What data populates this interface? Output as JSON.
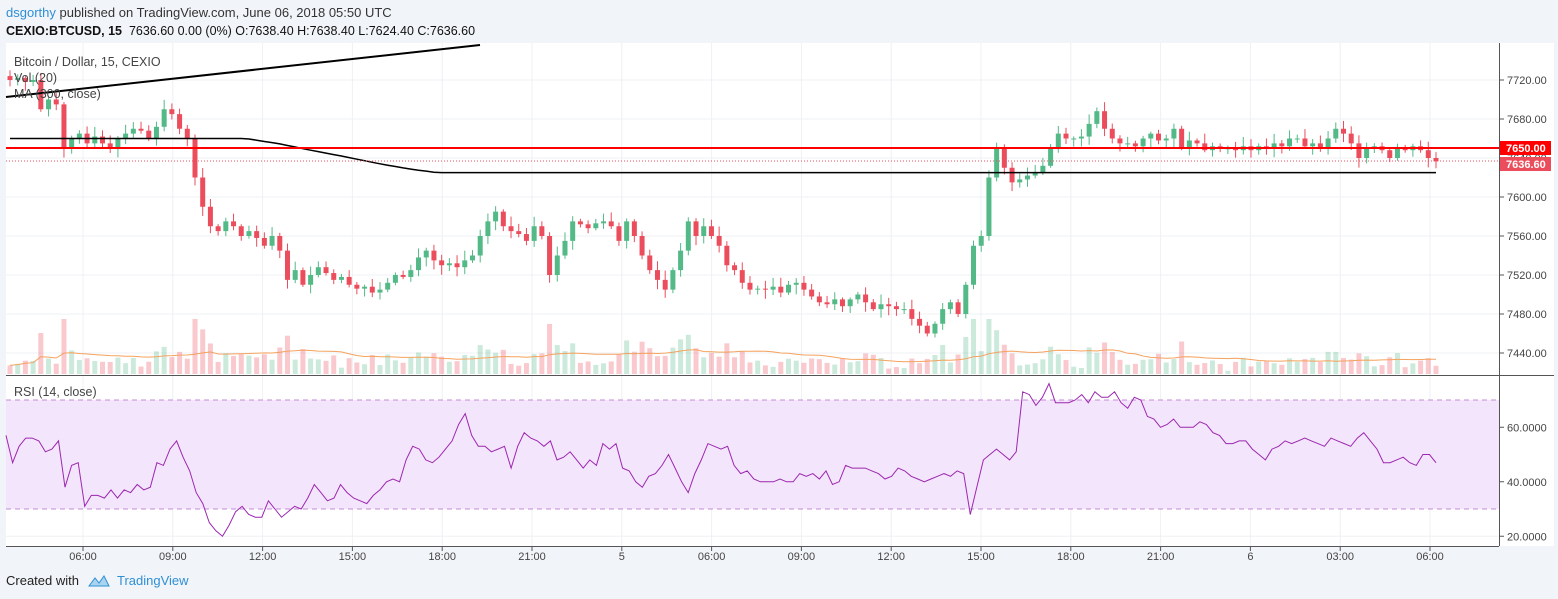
{
  "header": {
    "author": "dsgorthy",
    "published_text": " published on TradingView.com, June 06, 2018 05:50 UTC",
    "symbol": "CEXIO:BTCUSD, 15",
    "ohlc_text": "7636.60 0.00 (0%) O:7638.40 H:7638.40 L:7624.40 C:7636.60"
  },
  "footer": {
    "created_with": "Created with",
    "brand": "TradingView"
  },
  "colors": {
    "up": "#53b987",
    "down": "#eb4d5c",
    "rsi": "#9c27b0",
    "rsi_band": "#f3e5fb",
    "hline": "#ff0000",
    "ma": "#000000",
    "vol_ma": "#f5a25d"
  },
  "chart_data": {
    "type": "candlestick",
    "title": "Bitcoin / Dollar, 15, CEXIO",
    "legend": [
      "Vol (20)",
      "MA (300, close)"
    ],
    "price_axis": {
      "ticks": [
        "7720.00",
        "7680.00",
        "7640.00",
        "7600.00",
        "7560.00",
        "7520.00",
        "7480.00",
        "7440.00"
      ]
    },
    "time_axis": {
      "ticks": [
        "06:00",
        "09:00",
        "12:00",
        "15:00",
        "18:00",
        "21:00",
        "5",
        "06:00",
        "09:00",
        "12:00",
        "15:00",
        "18:00",
        "21:00",
        "6",
        "03:00",
        "06:00"
      ]
    },
    "horizontal_line": {
      "value": 7650.0,
      "label": "7650.00"
    },
    "last_price": {
      "value": 7636.6,
      "label": "7636.60"
    },
    "close_series": [
      7720,
      7722,
      7718,
      7720,
      7690,
      7700,
      7695,
      7650,
      7660,
      7665,
      7655,
      7662,
      7655,
      7650,
      7660,
      7665,
      7670,
      7668,
      7660,
      7672,
      7690,
      7685,
      7670,
      7660,
      7620,
      7590,
      7570,
      7565,
      7575,
      7570,
      7560,
      7565,
      7558,
      7550,
      7560,
      7545,
      7515,
      7525,
      7510,
      7520,
      7528,
      7522,
      7515,
      7518,
      7510,
      7506,
      7508,
      7502,
      7505,
      7512,
      7520,
      7518,
      7525,
      7538,
      7545,
      7535,
      7530,
      7532,
      7528,
      7535,
      7540,
      7560,
      7575,
      7585,
      7570,
      7565,
      7562,
      7555,
      7570,
      7560,
      7520,
      7540,
      7555,
      7575,
      7572,
      7568,
      7573,
      7575,
      7570,
      7555,
      7575,
      7560,
      7540,
      7525,
      7515,
      7505,
      7525,
      7545,
      7575,
      7560,
      7570,
      7560,
      7550,
      7530,
      7525,
      7512,
      7505,
      7506,
      7505,
      7508,
      7502,
      7510,
      7512,
      7505,
      7498,
      7492,
      7490,
      7495,
      7488,
      7495,
      7500,
      7492,
      7485,
      7490,
      7488,
      7485,
      7485,
      7475,
      7468,
      7460,
      7470,
      7485,
      7492,
      7480,
      7510,
      7550,
      7560,
      7620,
      7650,
      7630,
      7615,
      7618,
      7622,
      7625,
      7632,
      7650,
      7665,
      7660,
      7660,
      7662,
      7675,
      7688,
      7670,
      7660,
      7655,
      7655,
      7652,
      7660,
      7665,
      7658,
      7660,
      7670,
      7650,
      7658,
      7655,
      7648,
      7652,
      7650,
      7650,
      7648,
      7652,
      7648,
      7652,
      7650,
      7655,
      7652,
      7660,
      7660,
      7652,
      7655,
      7650,
      7660,
      7670,
      7665,
      7655,
      7640,
      7650,
      7652,
      7648,
      7640,
      7650,
      7648,
      7652,
      7648,
      7640,
      7636.6
    ],
    "rsi": {
      "label": "RSI (14, close)",
      "ticks": [
        "60.0000",
        "40.0000",
        "20.0000"
      ],
      "upper_band": 70,
      "lower_band": 30,
      "values": [
        57,
        47,
        53,
        56,
        56,
        55,
        51,
        52,
        55,
        38,
        46,
        47,
        31,
        35,
        35,
        34,
        37,
        34,
        37,
        36,
        39,
        37,
        38,
        47,
        46,
        52,
        55,
        49,
        44,
        36,
        32,
        25,
        22,
        20,
        24,
        29,
        31,
        28,
        27,
        27,
        33,
        30,
        27,
        29,
        31,
        30,
        34,
        39,
        36,
        33,
        34,
        39,
        36,
        34,
        33,
        32,
        35,
        37,
        40,
        41,
        40,
        48,
        53,
        52,
        48,
        47,
        49,
        52,
        55,
        61,
        65,
        57,
        53,
        53,
        51,
        52,
        53,
        45,
        53,
        58,
        56,
        55,
        53,
        55,
        48,
        49,
        51,
        48,
        45,
        48,
        46,
        54,
        52,
        54,
        45,
        44,
        40,
        38,
        42,
        43,
        46,
        50,
        45,
        40,
        36,
        43,
        48,
        54,
        53,
        52,
        53,
        46,
        43,
        44,
        41,
        40,
        40,
        40,
        41,
        40,
        40,
        43,
        42,
        43,
        41,
        44,
        39,
        40,
        46,
        45,
        45,
        45,
        44,
        43,
        41,
        42,
        45,
        44,
        42,
        41,
        40,
        41,
        42,
        43,
        42,
        44,
        43,
        28,
        38,
        48,
        50,
        52,
        50,
        48,
        51,
        73,
        72,
        68,
        71,
        76,
        69,
        69,
        69,
        70,
        72,
        69,
        73,
        71,
        71,
        73,
        69,
        67,
        71,
        70,
        64,
        63,
        60,
        61,
        63,
        60,
        60,
        60,
        62,
        61,
        58,
        57,
        54,
        54,
        55,
        55,
        52,
        50,
        48,
        52,
        53,
        55,
        54,
        55,
        56,
        55,
        54,
        53,
        56,
        55,
        54,
        53,
        56,
        58,
        55,
        52,
        47,
        47,
        48,
        49,
        47,
        46,
        50,
        50,
        47
      ]
    }
  }
}
